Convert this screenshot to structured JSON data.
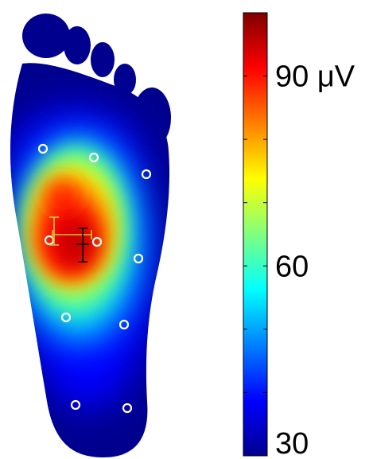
{
  "chart_data": {
    "type": "heatmap",
    "title": "",
    "xlabel": "",
    "ylabel": "",
    "colormap": "jet",
    "color_range": [
      30,
      100
    ],
    "colorbar": {
      "placement": "right",
      "tick_labels": [
        {
          "value": 90,
          "label": "90 μV"
        },
        {
          "value": 60,
          "label": "60"
        },
        {
          "value": 30,
          "label": "30"
        }
      ]
    },
    "peak_value": 100,
    "markers": {
      "type": "electrode-circles",
      "color": "#ffffff",
      "count": 11
    },
    "error_bars": [
      {
        "color": "#c8c832"
      },
      {
        "color": "#000000"
      }
    ]
  }
}
